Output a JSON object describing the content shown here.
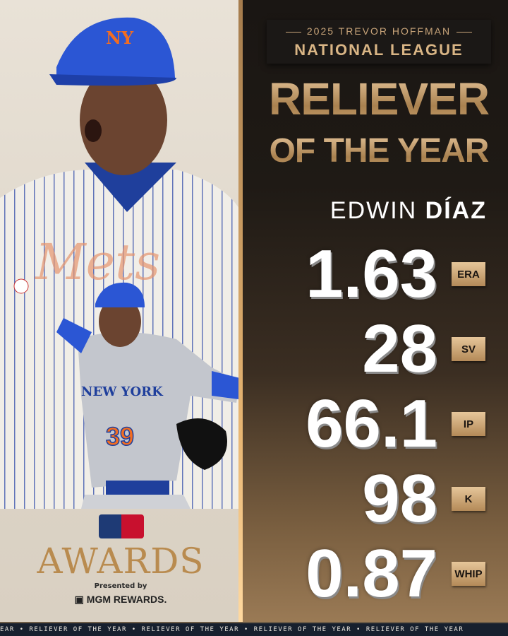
{
  "header": {
    "subtitle": "2025 TREVOR HOFFMAN",
    "league": "NATIONAL LEAGUE"
  },
  "title": {
    "line1": "RELIEVER",
    "line2": "OF THE YEAR"
  },
  "player": {
    "first_name": "EDWIN",
    "last_name": "DÍAZ",
    "jersey_number": "39",
    "jersey_text": "NEW YORK",
    "team_script": "Mets",
    "cap_logo": "NY"
  },
  "stats": [
    {
      "value": "1.63",
      "label": "ERA"
    },
    {
      "value": "28",
      "label": "SV"
    },
    {
      "value": "66.1",
      "label": "IP"
    },
    {
      "value": "98",
      "label": "K"
    },
    {
      "value": "0.87",
      "label": "WHIP"
    }
  ],
  "branding": {
    "logo": "MLB",
    "awards": "AWARDS",
    "presented_by": "Presented by",
    "sponsor": "MGM REWARDS."
  },
  "ticker": {
    "text": "RELIEVER OF THE YEAR",
    "separator": "•"
  },
  "colors": {
    "gold": "#c49c6c",
    "dark": "#1a1613",
    "ticker_bg": "#17202e",
    "mets_blue": "#2a5bd7",
    "mets_orange": "#f26d21"
  }
}
